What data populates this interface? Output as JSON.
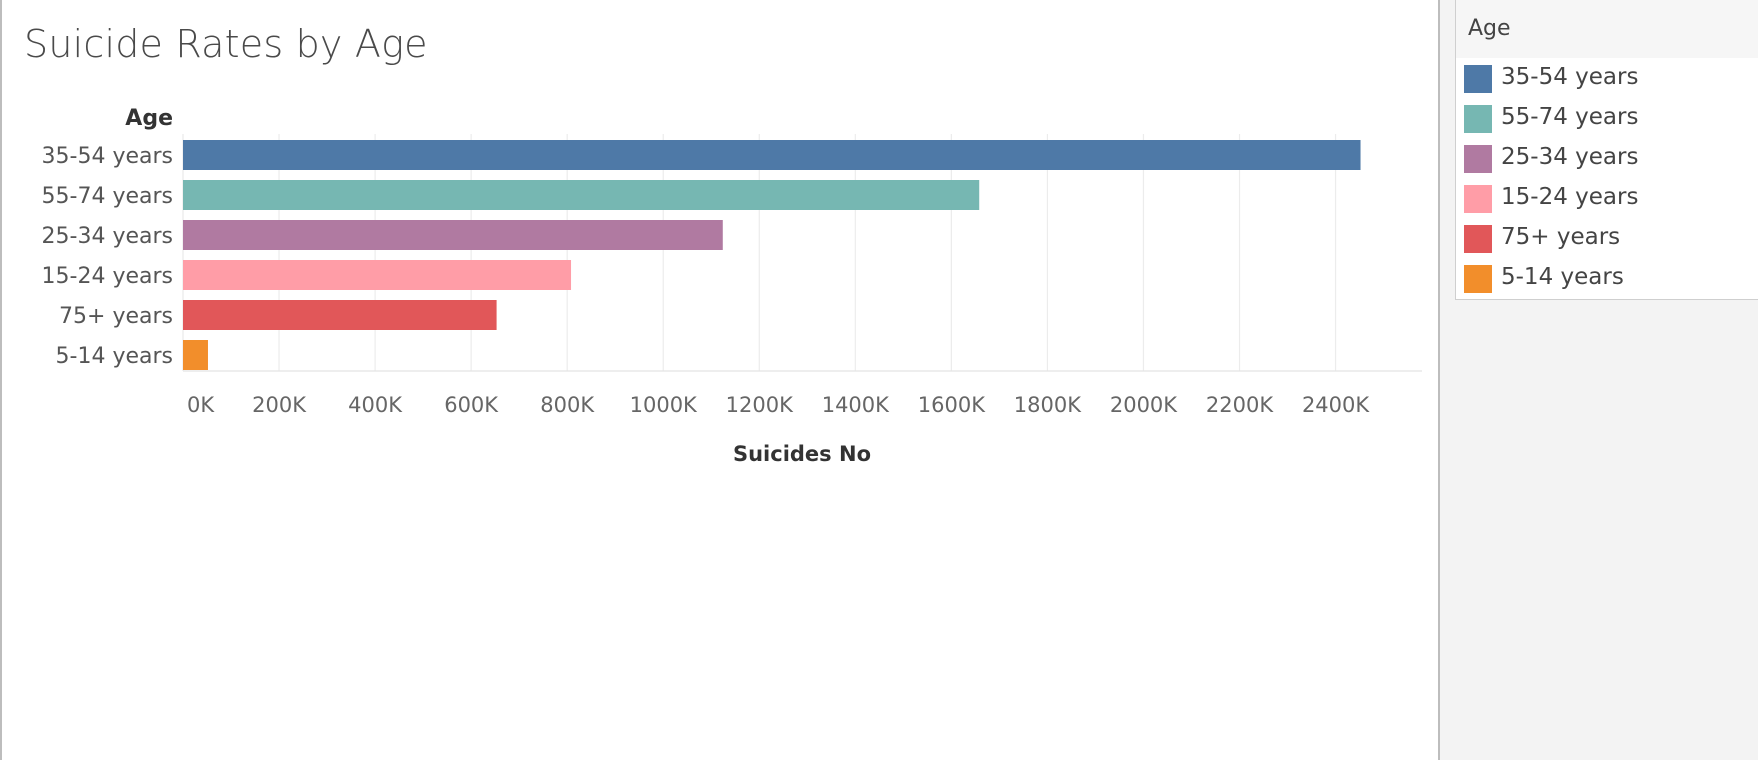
{
  "chart_data": {
    "type": "bar",
    "orientation": "horizontal",
    "title": "Suicide Rates by Age",
    "ylabel": "Age",
    "xlabel": "Suicides No",
    "categories": [
      "35-54 years",
      "55-74 years",
      "25-34 years",
      "15-24 years",
      "75+ years",
      "5-14 years"
    ],
    "values": [
      2452000,
      1658000,
      1124000,
      808000,
      653000,
      52000
    ],
    "colors": [
      "#4e79a7",
      "#76b7b2",
      "#b07aa1",
      "#ff9da7",
      "#e15759",
      "#f28e2b"
    ],
    "xlim": [
      0,
      2580000
    ],
    "x_ticks": [
      0,
      200000,
      400000,
      600000,
      800000,
      1000000,
      1200000,
      1400000,
      1600000,
      1800000,
      2000000,
      2200000,
      2400000
    ],
    "x_tick_labels": [
      "0K",
      "200K",
      "400K",
      "600K",
      "800K",
      "1000K",
      "1200K",
      "1400K",
      "1600K",
      "1800K",
      "2000K",
      "2200K",
      "2400K"
    ],
    "grid": true
  },
  "legend": {
    "title": "Age",
    "items": [
      {
        "label": "35-54 years",
        "color": "#4e79a7"
      },
      {
        "label": "55-74 years",
        "color": "#76b7b2"
      },
      {
        "label": "25-34 years",
        "color": "#b07aa1"
      },
      {
        "label": "15-24 years",
        "color": "#ff9da7"
      },
      {
        "label": "75+ years",
        "color": "#e15759"
      },
      {
        "label": "5-14 years",
        "color": "#f28e2b"
      }
    ]
  }
}
